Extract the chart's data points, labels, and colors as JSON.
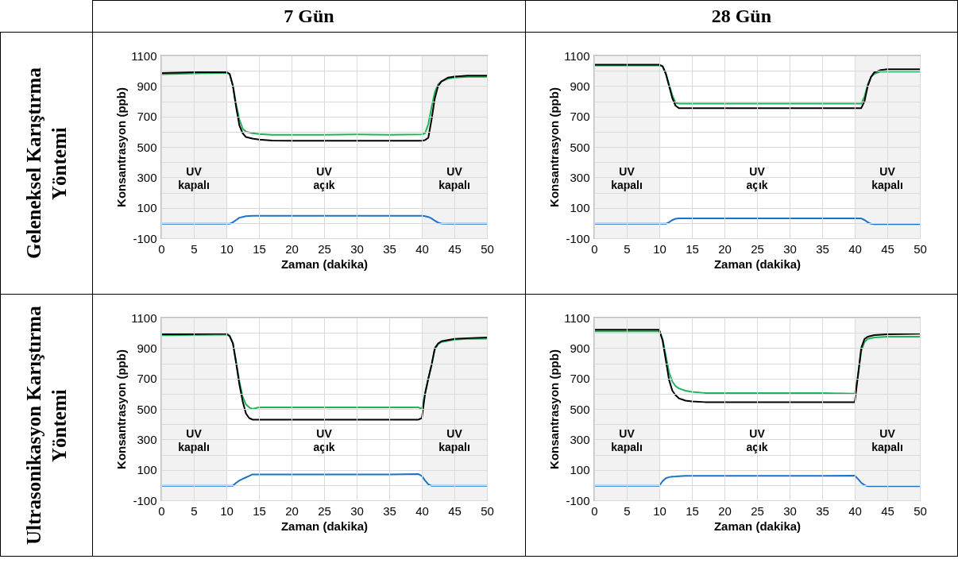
{
  "chart_data": [
    {
      "type": "line",
      "title": "7 Gün",
      "annotations": [
        "Geleneksel Karıştırma Yöntemi"
      ],
      "xlabel": "Zaman  (dakika)",
      "ylabel": "Konsantrasyon (ppb)",
      "xlim": [
        0,
        50
      ],
      "xticks": [
        0,
        5,
        10,
        15,
        20,
        25,
        30,
        35,
        40,
        45,
        50
      ],
      "ylim": [
        -100,
        1100
      ],
      "yticks": [
        -100,
        {
          "value": 0,
          "label": null
        },
        100,
        {
          "value": 200,
          "label": null
        },
        300,
        {
          "value": 400,
          "label": null
        },
        500,
        {
          "value": 600,
          "label": null
        },
        700,
        {
          "value": 800,
          "label": null
        },
        900,
        {
          "value": 1000,
          "label": null
        },
        1100
      ],
      "grid": true,
      "line_style": "solid",
      "bands": [
        {
          "axis": "x",
          "from": 0,
          "to": 10,
          "label": "UV kapalı",
          "color": "#f2f2f2"
        },
        {
          "axis": "x",
          "from": 10,
          "to": 40,
          "label": "UV açık",
          "color": "#ffffff"
        },
        {
          "axis": "x",
          "from": 40,
          "to": 50,
          "label": "UV kapalı",
          "color": "#f2f2f2"
        }
      ],
      "x": [
        0,
        5,
        10,
        10.5,
        11,
        11.5,
        12,
        12.5,
        13,
        14,
        15,
        17,
        20,
        25,
        30,
        35,
        40,
        40.5,
        41,
        41.5,
        42,
        42.5,
        43,
        44,
        45,
        47,
        50
      ],
      "series": [
        {
          "color": "#21b35a",
          "values": [
            978,
            983,
            986,
            978,
            905,
            780,
            680,
            620,
            600,
            590,
            585,
            580,
            580,
            580,
            582,
            580,
            582,
            590,
            650,
            760,
            860,
            910,
            930,
            948,
            955,
            960,
            960
          ]
        },
        {
          "color": "#000000",
          "values": [
            985,
            990,
            992,
            980,
            900,
            760,
            640,
            590,
            565,
            555,
            548,
            542,
            540,
            540,
            540,
            540,
            540,
            545,
            560,
            680,
            820,
            900,
            930,
            955,
            962,
            968,
            968
          ]
        },
        {
          "color": "#1a73c9",
          "values": [
            -5,
            -5,
            -5,
            -5,
            5,
            20,
            35,
            40,
            45,
            48,
            48,
            48,
            48,
            48,
            48,
            48,
            48,
            45,
            40,
            30,
            15,
            2,
            -3,
            -5,
            -5,
            -5,
            -5
          ]
        }
      ]
    },
    {
      "type": "line",
      "title": "28 Gün",
      "xlabel": "Zaman  (dakika)",
      "ylabel": "Konsantrasyon (ppb)",
      "xlim": [
        0,
        50
      ],
      "xticks": [
        0,
        5,
        10,
        15,
        20,
        25,
        30,
        35,
        40,
        45,
        50
      ],
      "ylim": [
        -100,
        1100
      ],
      "yticks": [
        -100,
        {
          "value": 0,
          "label": null
        },
        100,
        {
          "value": 200,
          "label": null
        },
        300,
        {
          "value": 400,
          "label": null
        },
        500,
        {
          "value": 600,
          "label": null
        },
        700,
        {
          "value": 800,
          "label": null
        },
        900,
        {
          "value": 1000,
          "label": null
        },
        1100
      ],
      "grid": true,
      "line_style": "solid",
      "bands": [
        {
          "axis": "x",
          "from": 0,
          "to": 10,
          "label": "UV kapalı",
          "color": "#f2f2f2"
        },
        {
          "axis": "x",
          "from": 10,
          "to": 40,
          "label": "UV açık",
          "color": "#ffffff"
        },
        {
          "axis": "x",
          "from": 40,
          "to": 50,
          "label": "UV kapalı",
          "color": "#f2f2f2"
        }
      ],
      "x": [
        0,
        5,
        10,
        10.5,
        11,
        11.5,
        12,
        12.5,
        13,
        14,
        15,
        20,
        25,
        30,
        35,
        40,
        41,
        41.5,
        42,
        42.5,
        43,
        44,
        45,
        50
      ],
      "series": [
        {
          "color": "#21b35a",
          "values": [
            1035,
            1035,
            1035,
            1030,
            985,
            910,
            840,
            790,
            785,
            785,
            785,
            785,
            785,
            785,
            785,
            785,
            785,
            830,
            910,
            960,
            980,
            995,
            995,
            995
          ]
        },
        {
          "color": "#000000",
          "values": [
            1040,
            1040,
            1040,
            1030,
            980,
            900,
            820,
            770,
            755,
            755,
            755,
            755,
            755,
            755,
            755,
            755,
            755,
            800,
            900,
            960,
            990,
            1005,
            1010,
            1010
          ]
        },
        {
          "color": "#1a73c9",
          "values": [
            -5,
            -5,
            -5,
            -5,
            -5,
            5,
            20,
            28,
            30,
            30,
            30,
            30,
            30,
            30,
            30,
            30,
            30,
            20,
            5,
            -5,
            -8,
            -8,
            -8,
            -8
          ]
        }
      ]
    },
    {
      "type": "line",
      "annotations": [
        "Ultrasonikasyon Karıştırma Yöntemi"
      ],
      "xlabel": "Zaman  (dakika)",
      "ylabel": "Konsantrasyon (ppb)",
      "xlim": [
        0,
        50
      ],
      "xticks": [
        0,
        5,
        10,
        15,
        20,
        25,
        30,
        35,
        40,
        45,
        50
      ],
      "ylim": [
        -100,
        1100
      ],
      "yticks": [
        -100,
        {
          "value": 0,
          "label": null
        },
        100,
        {
          "value": 200,
          "label": null
        },
        300,
        {
          "value": 400,
          "label": null
        },
        500,
        {
          "value": 600,
          "label": null
        },
        700,
        {
          "value": 800,
          "label": null
        },
        900,
        {
          "value": 1000,
          "label": null
        },
        1100
      ],
      "grid": true,
      "line_style": "solid",
      "bands": [
        {
          "axis": "x",
          "from": 0,
          "to": 10,
          "label": "UV kapalı",
          "color": "#f2f2f2"
        },
        {
          "axis": "x",
          "from": 10,
          "to": 40,
          "label": "UV açık",
          "color": "#ffffff"
        },
        {
          "axis": "x",
          "from": 40,
          "to": 50,
          "label": "UV kapalı",
          "color": "#f2f2f2"
        }
      ],
      "x": [
        0,
        5,
        10,
        10.5,
        11,
        11.5,
        12,
        12.5,
        13,
        13.5,
        14,
        15,
        20,
        25,
        30,
        35,
        39.5,
        40,
        40.5,
        41,
        41.5,
        42,
        42.5,
        43,
        45,
        47,
        50
      ],
      "series": [
        {
          "color": "#21b35a",
          "values": [
            984,
            986,
            988,
            978,
            935,
            810,
            680,
            580,
            530,
            510,
            500,
            510,
            510,
            510,
            510,
            510,
            510,
            500,
            600,
            700,
            790,
            890,
            925,
            940,
            955,
            960,
            962
          ]
        },
        {
          "color": "#000000",
          "values": [
            990,
            992,
            995,
            980,
            930,
            800,
            660,
            550,
            470,
            440,
            430,
            430,
            430,
            430,
            430,
            430,
            430,
            440,
            600,
            700,
            790,
            900,
            930,
            945,
            960,
            965,
            970
          ]
        },
        {
          "color": "#1a73c9",
          "values": [
            -5,
            -5,
            -5,
            -5,
            -5,
            15,
            30,
            40,
            50,
            60,
            70,
            70,
            70,
            70,
            70,
            70,
            72,
            60,
            30,
            5,
            -5,
            -5,
            -5,
            -5,
            -5,
            -5,
            -5
          ]
        }
      ]
    },
    {
      "type": "line",
      "xlabel": "Zaman  (dakika)",
      "ylabel": "Konsantrasyon (ppb)",
      "xlim": [
        0,
        50
      ],
      "xticks": [
        0,
        5,
        10,
        15,
        20,
        25,
        30,
        35,
        40,
        45,
        50
      ],
      "ylim": [
        -100,
        1100
      ],
      "yticks": [
        -100,
        {
          "value": 0,
          "label": null
        },
        100,
        {
          "value": 200,
          "label": null
        },
        300,
        {
          "value": 400,
          "label": null
        },
        500,
        {
          "value": 600,
          "label": null
        },
        700,
        {
          "value": 800,
          "label": null
        },
        900,
        {
          "value": 1000,
          "label": null
        },
        1100
      ],
      "grid": true,
      "line_style": "solid",
      "bands": [
        {
          "axis": "x",
          "from": 0,
          "to": 10,
          "label": "UV kapalı",
          "color": "#f2f2f2"
        },
        {
          "axis": "x",
          "from": 10,
          "to": 40,
          "label": "UV açık",
          "color": "#ffffff"
        },
        {
          "axis": "x",
          "from": 40,
          "to": 50,
          "label": "UV kapalı",
          "color": "#f2f2f2"
        }
      ],
      "x": [
        0,
        5,
        10,
        10.5,
        11,
        11.5,
        12,
        12.5,
        13,
        14,
        15,
        17,
        20,
        25,
        30,
        35,
        40,
        40.5,
        41,
        41.5,
        42,
        43,
        45,
        50
      ],
      "series": [
        {
          "color": "#21b35a",
          "values": [
            1010,
            1010,
            1010,
            960,
            850,
            740,
            680,
            650,
            635,
            620,
            612,
            605,
            605,
            605,
            605,
            605,
            600,
            720,
            880,
            940,
            960,
            970,
            975,
            975
          ]
        },
        {
          "color": "#000000",
          "values": [
            1020,
            1020,
            1020,
            950,
            820,
            690,
            620,
            590,
            570,
            555,
            550,
            545,
            545,
            545,
            545,
            545,
            545,
            720,
            900,
            960,
            975,
            985,
            990,
            995
          ]
        },
        {
          "color": "#1a73c9",
          "values": [
            -5,
            -5,
            -5,
            25,
            45,
            52,
            55,
            56,
            58,
            60,
            60,
            60,
            60,
            60,
            60,
            60,
            62,
            40,
            15,
            0,
            -8,
            -8,
            -8,
            -8
          ]
        }
      ]
    }
  ]
}
